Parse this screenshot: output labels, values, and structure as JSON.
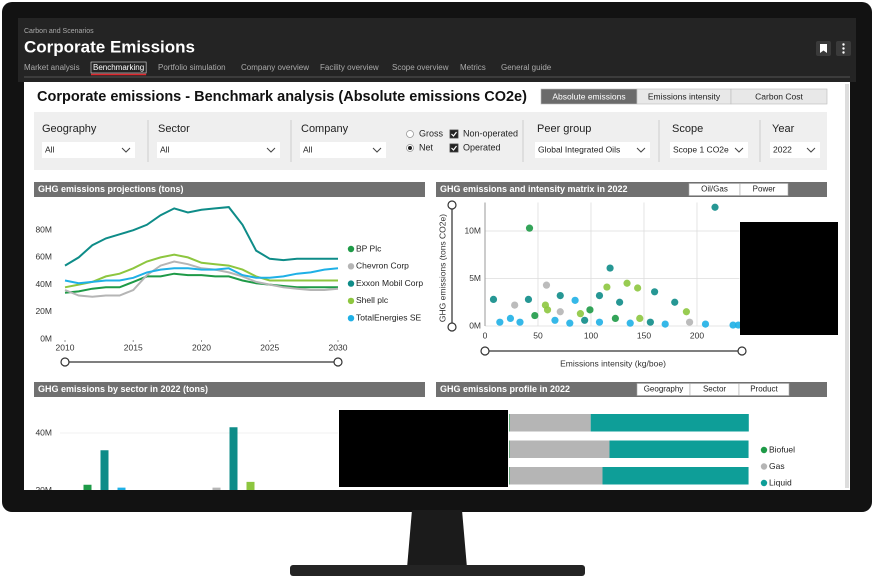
{
  "header": {
    "section": "Carbon and Scenarios",
    "title": "Corporate Emissions",
    "tabs": [
      {
        "label": "Market analysis",
        "active": false
      },
      {
        "label": "Benchmarking",
        "active": true
      },
      {
        "label": "Portfolio simulation",
        "active": false
      },
      {
        "label": "Company overview",
        "active": false
      },
      {
        "label": "Facility overview",
        "active": false
      },
      {
        "label": "Scope overview",
        "active": false
      },
      {
        "label": "Metrics",
        "active": false
      },
      {
        "label": "General guide",
        "active": false
      }
    ]
  },
  "page_title": "Corporate emissions - Benchmark analysis (Absolute emissions CO2e)",
  "view_buttons": [
    {
      "label": "Absolute emissions",
      "active": true
    },
    {
      "label": "Emissions intensity",
      "active": false
    },
    {
      "label": "Carbon Cost",
      "active": false
    }
  ],
  "filters": [
    {
      "label": "Geography",
      "value": "All"
    },
    {
      "label": "Sector",
      "value": "All"
    },
    {
      "label": "Company",
      "value": "All"
    },
    {
      "label": "Peer group",
      "value": "Global Integrated Oils"
    },
    {
      "label": "Scope",
      "value": "Scope 1 CO2e"
    },
    {
      "label": "Year",
      "value": "2022"
    }
  ],
  "emission_basis": [
    {
      "label": "Gross",
      "selected": false
    },
    {
      "label": "Net",
      "selected": true
    }
  ],
  "operation": [
    {
      "label": "Non-operated",
      "checked": true
    },
    {
      "label": "Operated",
      "checked": true
    }
  ],
  "chart_data": [
    {
      "type": "line",
      "title": "GHG emissions projections (tons)",
      "x": [
        2010,
        2011,
        2012,
        2013,
        2014,
        2015,
        2016,
        2017,
        2018,
        2019,
        2020,
        2021,
        2022,
        2023,
        2024,
        2025,
        2026,
        2027,
        2028,
        2029,
        2030
      ],
      "xlim": [
        2010,
        2030
      ],
      "xticks": [
        2010,
        2015,
        2020,
        2025,
        2030
      ],
      "ylim": [
        0,
        100000000
      ],
      "yticks": [
        {
          "value": 0,
          "label": "0M"
        },
        {
          "value": 20000000,
          "label": "20M"
        },
        {
          "value": 40000000,
          "label": "40M"
        },
        {
          "value": 60000000,
          "label": "60M"
        },
        {
          "value": 80000000,
          "label": "80M"
        }
      ],
      "legend": "right",
      "series": [
        {
          "name": "BP Plc",
          "color": "#1e9a47",
          "values": [
            34000000,
            35000000,
            37000000,
            38000000,
            38000000,
            42000000,
            46000000,
            46000000,
            48000000,
            47000000,
            47000000,
            46000000,
            46000000,
            43000000,
            41000000,
            40000000,
            39000000,
            38000000,
            38000000,
            38000000,
            38000000
          ]
        },
        {
          "name": "Chevron Corp",
          "color": "#b5b5b5",
          "values": [
            36000000,
            32000000,
            31000000,
            32000000,
            32000000,
            36000000,
            47000000,
            54000000,
            57000000,
            55000000,
            52000000,
            51000000,
            49000000,
            46000000,
            42000000,
            40000000,
            38000000,
            37000000,
            36000000,
            36000000,
            37000000
          ]
        },
        {
          "name": "Exxon Mobil Corp",
          "color": "#0e8c88",
          "values": [
            54000000,
            60000000,
            69000000,
            74000000,
            77000000,
            80000000,
            84000000,
            91000000,
            96000000,
            93000000,
            95000000,
            96000000,
            97000000,
            84000000,
            65000000,
            59000000,
            58000000,
            59000000,
            59000000,
            59000000,
            59000000
          ]
        },
        {
          "name": "Shell plc",
          "color": "#8dc63f",
          "values": [
            38000000,
            40000000,
            42000000,
            46000000,
            48000000,
            52000000,
            57000000,
            60000000,
            62000000,
            60000000,
            56000000,
            55000000,
            54000000,
            51000000,
            46000000,
            43000000,
            43000000,
            43000000,
            43000000,
            43000000,
            43000000
          ]
        },
        {
          "name": "TotalEnergies SE",
          "color": "#1fb0e6",
          "values": [
            43000000,
            41000000,
            42000000,
            43000000,
            43000000,
            45000000,
            49000000,
            51000000,
            52000000,
            52000000,
            51000000,
            51000000,
            52000000,
            47000000,
            45000000,
            45000000,
            46000000,
            48000000,
            49000000,
            51000000,
            52000000
          ]
        }
      ]
    },
    {
      "type": "scatter",
      "title": "GHG emissions and intensity matrix in 2022",
      "toggles": [
        "Oil/Gas",
        "Power"
      ],
      "xlabel": "Emissions intensity (kg/boe)",
      "ylabel": "GHG emissions (tons CO2e)",
      "xlim": [
        0,
        240
      ],
      "xticks": [
        0,
        50,
        100,
        150,
        200
      ],
      "ylim": [
        0,
        13000000
      ],
      "yticks": [
        {
          "value": 0,
          "label": "0M"
        },
        {
          "value": 5000000,
          "label": "5M"
        },
        {
          "value": 10000000,
          "label": "10M"
        }
      ],
      "grid": true,
      "points": [
        {
          "x": 42,
          "y": 10300000,
          "color": "#1e9a47"
        },
        {
          "x": 217,
          "y": 12500000,
          "color": "#0e8c88"
        },
        {
          "x": 118,
          "y": 6100000,
          "color": "#0e8c88"
        },
        {
          "x": 58,
          "y": 4300000,
          "color": "#b5b5b5"
        },
        {
          "x": 134,
          "y": 4500000,
          "color": "#8dc63f"
        },
        {
          "x": 144,
          "y": 4000000,
          "color": "#8dc63f"
        },
        {
          "x": 160,
          "y": 3600000,
          "color": "#0e8c88"
        },
        {
          "x": 115,
          "y": 4100000,
          "color": "#8dc63f"
        },
        {
          "x": 8,
          "y": 2800000,
          "color": "#0e8c88"
        },
        {
          "x": 41,
          "y": 2800000,
          "color": "#0e8c88"
        },
        {
          "x": 57,
          "y": 2200000,
          "color": "#8dc63f"
        },
        {
          "x": 71,
          "y": 1500000,
          "color": "#b5b5b5"
        },
        {
          "x": 85,
          "y": 2700000,
          "color": "#1fb0e6"
        },
        {
          "x": 99,
          "y": 1700000,
          "color": "#1e9a47"
        },
        {
          "x": 127,
          "y": 2500000,
          "color": "#0e8c88"
        },
        {
          "x": 146,
          "y": 800000,
          "color": "#8dc63f"
        },
        {
          "x": 179,
          "y": 2500000,
          "color": "#0e8c88"
        },
        {
          "x": 190,
          "y": 1500000,
          "color": "#8dc63f"
        },
        {
          "x": 193,
          "y": 400000,
          "color": "#b5b5b5"
        },
        {
          "x": 234,
          "y": 100000,
          "color": "#1fb0e6"
        },
        {
          "x": 239,
          "y": 100000,
          "color": "#1fb0e6"
        },
        {
          "x": 14,
          "y": 400000,
          "color": "#1fb0e6"
        },
        {
          "x": 24,
          "y": 800000,
          "color": "#1fb0e6"
        },
        {
          "x": 33,
          "y": 400000,
          "color": "#1fb0e6"
        },
        {
          "x": 47,
          "y": 1100000,
          "color": "#1e9a47"
        },
        {
          "x": 66,
          "y": 600000,
          "color": "#1fb0e6"
        },
        {
          "x": 80,
          "y": 300000,
          "color": "#1fb0e6"
        },
        {
          "x": 94,
          "y": 600000,
          "color": "#0e8c88"
        },
        {
          "x": 108,
          "y": 400000,
          "color": "#1fb0e6"
        },
        {
          "x": 123,
          "y": 800000,
          "color": "#1e9a47"
        },
        {
          "x": 137,
          "y": 300000,
          "color": "#1fb0e6"
        },
        {
          "x": 156,
          "y": 400000,
          "color": "#0e8c88"
        },
        {
          "x": 170,
          "y": 200000,
          "color": "#1fb0e6"
        },
        {
          "x": 208,
          "y": 200000,
          "color": "#1fb0e6"
        },
        {
          "x": 59,
          "y": 1700000,
          "color": "#8dc63f"
        },
        {
          "x": 28,
          "y": 2200000,
          "color": "#b5b5b5"
        },
        {
          "x": 90,
          "y": 1300000,
          "color": "#8dc63f"
        },
        {
          "x": 108,
          "y": 3200000,
          "color": "#0e8c88"
        },
        {
          "x": 71,
          "y": 3200000,
          "color": "#0e8c88"
        }
      ]
    },
    {
      "type": "bar",
      "title": "GHG emissions by sector in 2022 (tons)",
      "categories": [
        null,
        null
      ],
      "ylim": [
        0,
        48000000
      ],
      "yticks": [
        {
          "value": 20000000,
          "label": "20M"
        },
        {
          "value": 40000000,
          "label": "40M"
        }
      ],
      "series": [
        {
          "color": "#1e9a47",
          "values": [
            22000000,
            null
          ]
        },
        {
          "color": "#b5b5b5",
          "values": [
            null,
            21000000
          ]
        },
        {
          "color": "#0e8c88",
          "values": [
            34000000,
            42000000
          ]
        },
        {
          "color": "#1fb0e6",
          "values": [
            21000000,
            null
          ]
        },
        {
          "color": "#8dc63f",
          "values": [
            null,
            23000000
          ]
        }
      ]
    },
    {
      "type": "stacked_bar_horizontal",
      "title": "GHG emissions profile in 2022",
      "toggles": [
        "Geography",
        "Sector",
        "Product"
      ],
      "categories": [
        null,
        null,
        null
      ],
      "xlim": [
        0,
        100
      ],
      "legend": "right",
      "series": [
        {
          "name": "Biofuel",
          "color": "#1e9a47",
          "values": [
            0.3,
            0.2,
            0.2
          ]
        },
        {
          "name": "Gas",
          "color": "#b5b5b5",
          "values": [
            33.6,
            41.5,
            38.6
          ]
        },
        {
          "name": "Liquid",
          "color": "#0e9e98",
          "values": [
            65.6,
            57.7,
            60.6
          ]
        }
      ]
    }
  ]
}
